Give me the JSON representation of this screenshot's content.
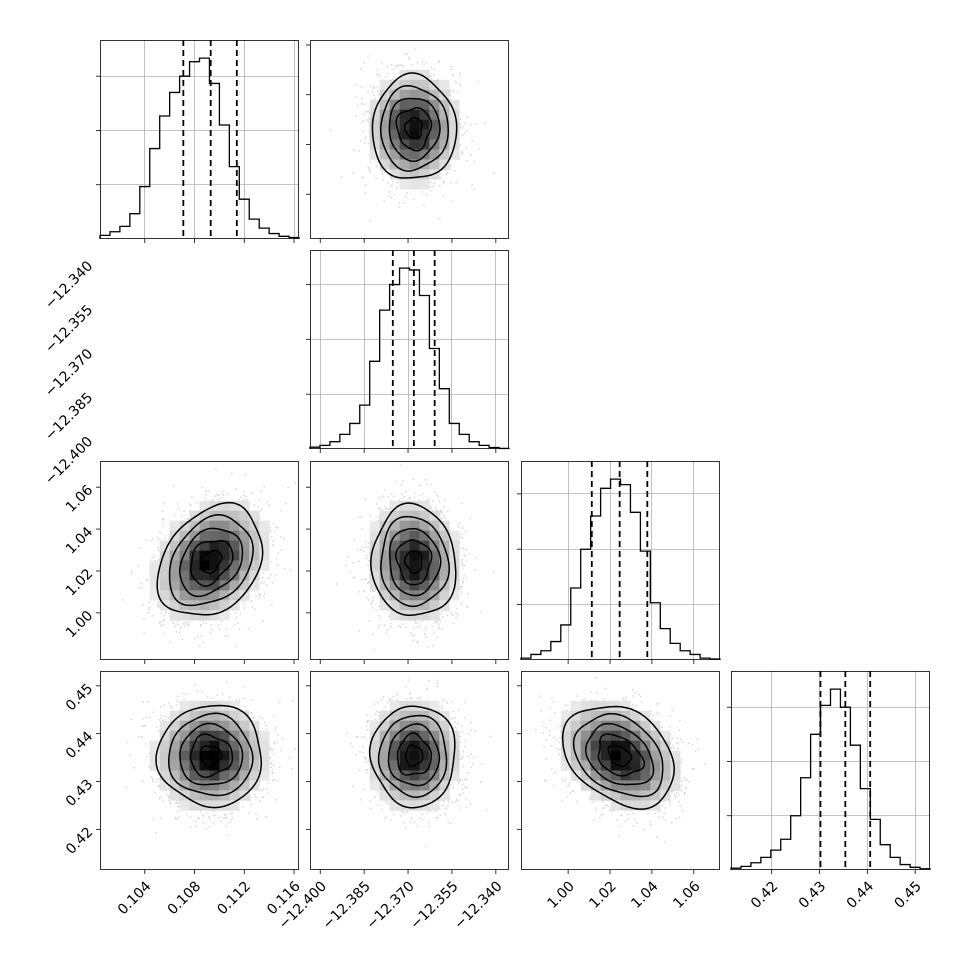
{
  "chart_data": {
    "type": "corner",
    "params": [
      {
        "ticks": [
          0.104,
          0.108,
          0.112,
          0.116
        ],
        "tick_labels": [
          "0.104",
          "0.108",
          "0.112",
          "0.116"
        ],
        "range": [
          0.1004,
          0.1164
        ],
        "mean": 0.1093,
        "sd": 0.0021,
        "quantiles": [
          0.1071,
          0.1093,
          0.1114
        ]
      },
      {
        "ticks": [
          -12.4,
          -12.385,
          -12.37,
          -12.355,
          -12.34
        ],
        "tick_labels": [
          "−12.400",
          "−12.385",
          "−12.370",
          "−12.355",
          "−12.340"
        ],
        "range": [
          -12.4035,
          -12.3355
        ],
        "mean": -12.368,
        "sd": 0.0072,
        "quantiles": [
          -12.3752,
          -12.368,
          -12.3609
        ]
      },
      {
        "ticks": [
          1.0,
          1.02,
          1.04,
          1.06
        ],
        "tick_labels": [
          "1.00",
          "1.02",
          "1.04",
          "1.06"
        ],
        "range": [
          0.9775,
          1.0725
        ],
        "mean": 1.0245,
        "sd": 0.0133,
        "quantiles": [
          1.0113,
          1.0246,
          1.0378
        ]
      },
      {
        "ticks": [
          0.42,
          0.43,
          0.44,
          0.45
        ],
        "tick_labels": [
          "0.42",
          "0.43",
          "0.44",
          "0.45"
        ],
        "range": [
          0.4115,
          0.4531
        ],
        "mean": 0.4354,
        "sd": 0.0053,
        "quantiles": [
          0.4302,
          0.4354,
          0.4406
        ]
      }
    ],
    "histograms": [
      [
        2,
        4,
        7,
        14,
        29,
        50,
        68,
        81,
        90,
        98,
        100,
        86,
        63,
        40,
        22,
        11,
        6,
        3,
        1.5,
        0.8
      ],
      [
        1,
        2,
        4,
        8,
        14,
        24,
        48,
        76,
        90,
        99,
        98,
        84,
        55,
        33,
        14,
        8,
        4,
        2,
        0.8,
        0.3
      ],
      [
        1,
        3,
        5,
        10,
        19,
        39,
        60,
        78,
        93,
        98,
        95,
        80,
        59,
        31,
        17,
        9,
        5,
        3,
        1,
        0.5
      ],
      [
        1,
        2,
        4,
        7,
        11,
        17,
        30,
        51,
        75,
        91,
        100,
        90,
        69,
        45,
        28,
        14,
        7,
        3,
        1.5,
        0.7
      ]
    ],
    "correlations": [
      [
        0,
        1,
        0
      ],
      [
        2,
        0,
        0.28
      ],
      [
        2,
        1,
        -0.05
      ],
      [
        3,
        0,
        0
      ],
      [
        3,
        1,
        0
      ],
      [
        3,
        2,
        -0.3
      ]
    ],
    "grid": true
  }
}
